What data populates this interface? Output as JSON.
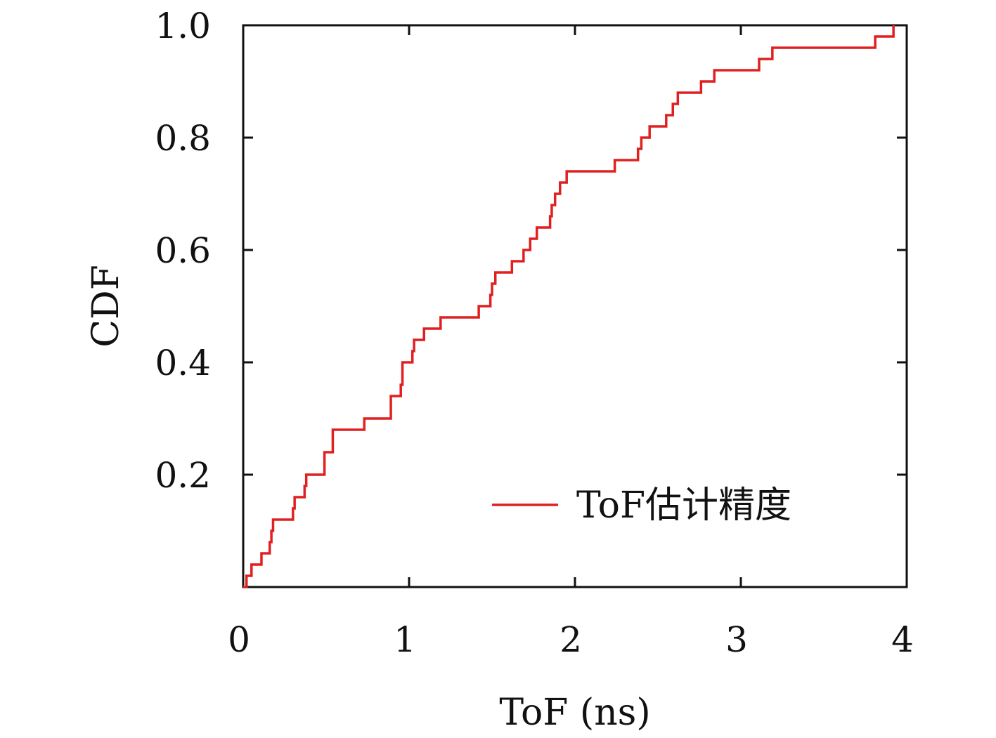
{
  "chart_data": {
    "type": "line",
    "step": true,
    "title": "",
    "xlabel": "ToF (ns)",
    "ylabel": "CDF",
    "xlim": [
      0,
      4
    ],
    "ylim": [
      0,
      1.0
    ],
    "x_ticks": [
      0,
      1,
      2,
      3,
      4
    ],
    "x_tick_labels": [
      "0",
      "1",
      "2",
      "3",
      "4"
    ],
    "y_ticks": [
      0.2,
      0.4,
      0.6,
      0.8,
      1.0
    ],
    "y_tick_labels": [
      "0.2",
      "0.4",
      "0.6",
      "0.8",
      "1.0"
    ],
    "grid": false,
    "legend_position": "bottom-right",
    "series": [
      {
        "name": "ToF估计精度",
        "color": "#e02020",
        "x": [
          0.0,
          0.02,
          0.05,
          0.11,
          0.16,
          0.17,
          0.18,
          0.29,
          0.3,
          0.31,
          0.37,
          0.38,
          0.47,
          0.49,
          0.54,
          0.73,
          0.88,
          0.89,
          0.95,
          0.96,
          1.02,
          1.03,
          1.09,
          1.19,
          1.42,
          1.48,
          1.49,
          1.5,
          1.52,
          1.62,
          1.69,
          1.73,
          1.77,
          1.85,
          1.86,
          1.88,
          1.91,
          1.93,
          1.95,
          2.24,
          2.38,
          2.4,
          2.42,
          2.45,
          2.55,
          2.59,
          2.62,
          2.76,
          2.84,
          3.11,
          3.19,
          3.81,
          3.92
        ],
        "y": [
          0.0,
          0.02,
          0.04,
          0.06,
          0.08,
          0.1,
          0.12,
          0.12,
          0.14,
          0.16,
          0.18,
          0.2,
          0.2,
          0.24,
          0.28,
          0.3,
          0.3,
          0.34,
          0.36,
          0.4,
          0.42,
          0.44,
          0.46,
          0.48,
          0.5,
          0.5,
          0.52,
          0.54,
          0.56,
          0.58,
          0.6,
          0.62,
          0.64,
          0.66,
          0.68,
          0.7,
          0.72,
          0.72,
          0.74,
          0.76,
          0.78,
          0.8,
          0.8,
          0.82,
          0.84,
          0.86,
          0.88,
          0.9,
          0.92,
          0.94,
          0.96,
          0.98,
          1.0
        ]
      }
    ]
  }
}
